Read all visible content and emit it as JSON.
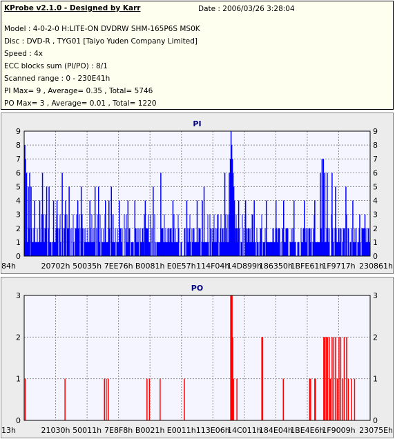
{
  "info": {
    "title": "KProbe v2.1.0 - Designed by Karr",
    "date": "Date : 2006/03/26 3:28:04",
    "model": "Model : 4-0-2-0 H:LITE-ON DVDRW SHM-165P6S MS0K",
    "disc": "Disc : DVD-R , TYG01 [Taiyo Yuden Company Limited]",
    "speed": "Speed : 4x",
    "ecc": "ECC blocks sum (PI/PO) : 8/1",
    "range": "Scanned range : 0 - 230E41h",
    "pi_stats": "PI Max= 9 , Average= 0.35 , Total= 5746",
    "po_stats": "PO Max= 3 , Average= 0.01 , Total= 1220"
  },
  "chart_data": [
    {
      "type": "bar",
      "title": "PI",
      "ylim": [
        0,
        9
      ],
      "yticks": [
        0,
        1,
        2,
        3,
        4,
        5,
        6,
        7,
        8,
        9
      ],
      "x_tick_labels": [
        "84h",
        "20702h",
        "50035h",
        "7EE76h",
        "B0081h",
        "E0E57h",
        "114F04h",
        "14D899h",
        "186350h",
        "1BFE61h",
        "1F9717h",
        "230861h"
      ],
      "bar_color": "#0000ff",
      "grid": true,
      "baseline": 1,
      "spikes": [
        {
          "x": 0.002,
          "y": 8
        },
        {
          "x": 0.004,
          "y": 7
        },
        {
          "x": 0.007,
          "y": 6
        },
        {
          "x": 0.012,
          "y": 5
        },
        {
          "x": 0.016,
          "y": 6
        },
        {
          "x": 0.02,
          "y": 5
        },
        {
          "x": 0.03,
          "y": 4
        },
        {
          "x": 0.045,
          "y": 4
        },
        {
          "x": 0.053,
          "y": 6
        },
        {
          "x": 0.065,
          "y": 5
        },
        {
          "x": 0.072,
          "y": 5
        },
        {
          "x": 0.085,
          "y": 4
        },
        {
          "x": 0.095,
          "y": 4
        },
        {
          "x": 0.11,
          "y": 6
        },
        {
          "x": 0.12,
          "y": 4
        },
        {
          "x": 0.13,
          "y": 5
        },
        {
          "x": 0.155,
          "y": 4
        },
        {
          "x": 0.165,
          "y": 5
        },
        {
          "x": 0.19,
          "y": 4
        },
        {
          "x": 0.205,
          "y": 5
        },
        {
          "x": 0.215,
          "y": 5
        },
        {
          "x": 0.235,
          "y": 4
        },
        {
          "x": 0.245,
          "y": 4
        },
        {
          "x": 0.252,
          "y": 5
        },
        {
          "x": 0.275,
          "y": 4
        },
        {
          "x": 0.3,
          "y": 4
        },
        {
          "x": 0.32,
          "y": 4
        },
        {
          "x": 0.35,
          "y": 4
        },
        {
          "x": 0.373,
          "y": 5
        },
        {
          "x": 0.395,
          "y": 6
        },
        {
          "x": 0.43,
          "y": 4
        },
        {
          "x": 0.47,
          "y": 4
        },
        {
          "x": 0.5,
          "y": 4
        },
        {
          "x": 0.515,
          "y": 4
        },
        {
          "x": 0.52,
          "y": 5
        },
        {
          "x": 0.58,
          "y": 6
        },
        {
          "x": 0.593,
          "y": 6
        },
        {
          "x": 0.596,
          "y": 7
        },
        {
          "x": 0.598,
          "y": 9
        },
        {
          "x": 0.6,
          "y": 8
        },
        {
          "x": 0.602,
          "y": 7
        },
        {
          "x": 0.604,
          "y": 6
        },
        {
          "x": 0.606,
          "y": 5
        },
        {
          "x": 0.608,
          "y": 4
        },
        {
          "x": 0.62,
          "y": 4
        },
        {
          "x": 0.64,
          "y": 4
        },
        {
          "x": 0.665,
          "y": 4
        },
        {
          "x": 0.7,
          "y": 4
        },
        {
          "x": 0.728,
          "y": 4
        },
        {
          "x": 0.75,
          "y": 4
        },
        {
          "x": 0.78,
          "y": 4
        },
        {
          "x": 0.81,
          "y": 4
        },
        {
          "x": 0.84,
          "y": 4
        },
        {
          "x": 0.856,
          "y": 6
        },
        {
          "x": 0.861,
          "y": 7
        },
        {
          "x": 0.865,
          "y": 7
        },
        {
          "x": 0.869,
          "y": 6
        },
        {
          "x": 0.876,
          "y": 6
        },
        {
          "x": 0.89,
          "y": 6
        },
        {
          "x": 0.9,
          "y": 5
        },
        {
          "x": 0.93,
          "y": 5
        },
        {
          "x": 0.95,
          "y": 4
        },
        {
          "x": 0.97,
          "y": 3
        },
        {
          "x": 0.985,
          "y": 3
        }
      ]
    },
    {
      "type": "bar",
      "title": "PO",
      "ylim": [
        0,
        3
      ],
      "yticks": [
        0,
        1,
        2,
        3
      ],
      "x_tick_labels": [
        "13h",
        "21030h",
        "50011h",
        "7E8F8h",
        "B0021h",
        "E0011h",
        "113E06h",
        "14C011h",
        "184E04h",
        "1BE4E6h",
        "1F9009h",
        "23075Eh"
      ],
      "bar_color": "#ff0000",
      "grid": true,
      "baseline": 0,
      "spikes": [
        {
          "x": 0.003,
          "y": 1
        },
        {
          "x": 0.118,
          "y": 1
        },
        {
          "x": 0.232,
          "y": 1
        },
        {
          "x": 0.237,
          "y": 1
        },
        {
          "x": 0.243,
          "y": 1
        },
        {
          "x": 0.355,
          "y": 1
        },
        {
          "x": 0.362,
          "y": 1
        },
        {
          "x": 0.393,
          "y": 1
        },
        {
          "x": 0.463,
          "y": 1
        },
        {
          "x": 0.597,
          "y": 3
        },
        {
          "x": 0.599,
          "y": 3
        },
        {
          "x": 0.601,
          "y": 3
        },
        {
          "x": 0.603,
          "y": 2
        },
        {
          "x": 0.605,
          "y": 1
        },
        {
          "x": 0.615,
          "y": 1
        },
        {
          "x": 0.687,
          "y": 2
        },
        {
          "x": 0.689,
          "y": 2
        },
        {
          "x": 0.749,
          "y": 1
        },
        {
          "x": 0.825,
          "y": 1
        },
        {
          "x": 0.828,
          "y": 1
        },
        {
          "x": 0.84,
          "y": 1
        },
        {
          "x": 0.842,
          "y": 1
        },
        {
          "x": 0.866,
          "y": 2
        },
        {
          "x": 0.869,
          "y": 2
        },
        {
          "x": 0.873,
          "y": 2
        },
        {
          "x": 0.877,
          "y": 2
        },
        {
          "x": 0.882,
          "y": 2
        },
        {
          "x": 0.885,
          "y": 1
        },
        {
          "x": 0.89,
          "y": 2
        },
        {
          "x": 0.895,
          "y": 2
        },
        {
          "x": 0.9,
          "y": 2
        },
        {
          "x": 0.905,
          "y": 1
        },
        {
          "x": 0.91,
          "y": 2
        },
        {
          "x": 0.915,
          "y": 2
        },
        {
          "x": 0.92,
          "y": 1
        },
        {
          "x": 0.925,
          "y": 2
        },
        {
          "x": 0.932,
          "y": 2
        },
        {
          "x": 0.937,
          "y": 1
        },
        {
          "x": 0.946,
          "y": 1
        },
        {
          "x": 0.955,
          "y": 1
        }
      ]
    }
  ]
}
